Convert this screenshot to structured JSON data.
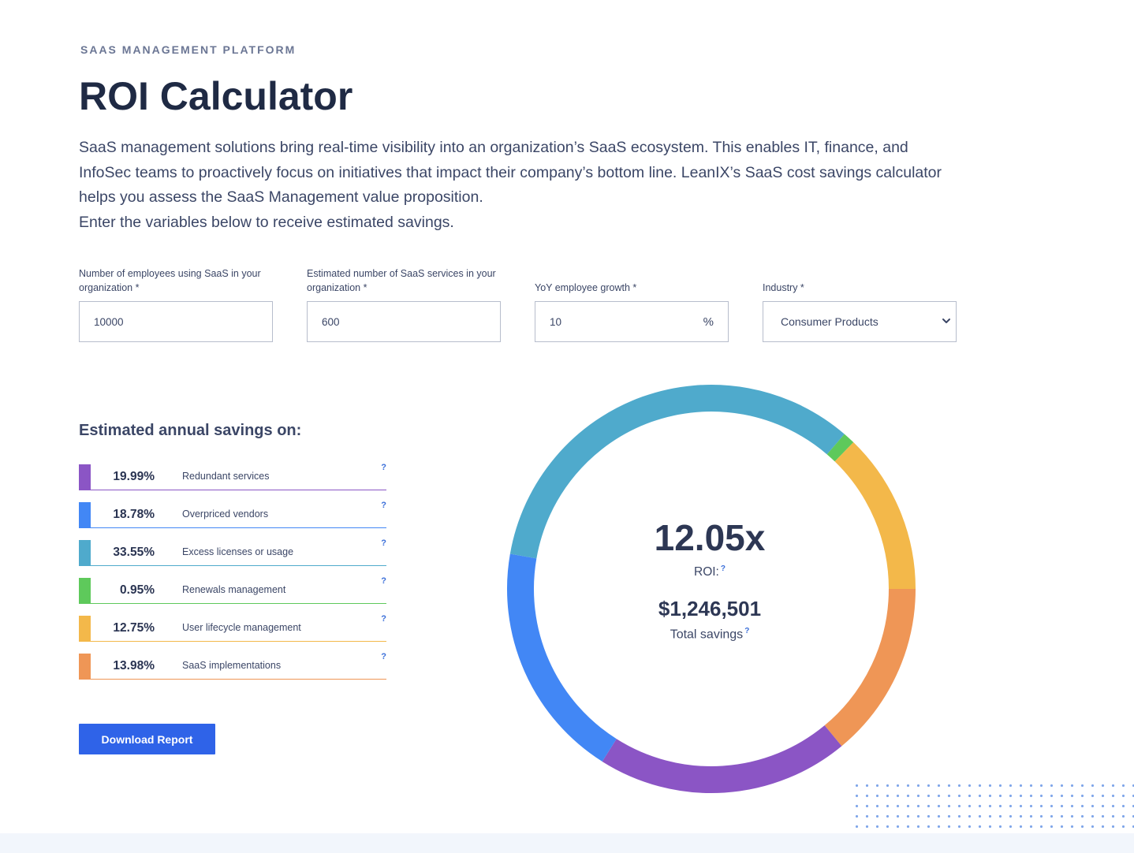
{
  "header": {
    "eyebrow": "SAAS MANAGEMENT PLATFORM",
    "title": "ROI Calculator",
    "intro": [
      "SaaS management solutions bring real-time visibility into an organization’s SaaS ecosystem. This enables IT, finance, and InfoSec teams to proactively focus on initiatives that impact their company’s bottom line. LeanIX’s SaaS cost savings calculator helps you assess the SaaS Management value proposition.",
      "Enter the variables below to receive estimated savings."
    ]
  },
  "form": {
    "employees": {
      "label": "Number of employees using SaaS in your organization  *",
      "value": "10000"
    },
    "services": {
      "label": "Estimated number of SaaS services in your organization  *",
      "value": "600"
    },
    "growth": {
      "label": "YoY employee growth  *",
      "value": "10",
      "unit": "%"
    },
    "industry": {
      "label": "Industry  *",
      "value": "Consumer Products",
      "icon": "chevron-down-icon"
    }
  },
  "savings": {
    "heading": "Estimated annual savings on:",
    "help_symbol": "?",
    "items": [
      {
        "pct": "19.99%",
        "label": "Redundant services",
        "color": "#8b55c5"
      },
      {
        "pct": "18.78%",
        "label": "Overpriced vendors",
        "color": "#4287f5"
      },
      {
        "pct": "33.55%",
        "label": "Excess licenses or usage",
        "color": "#4faacc"
      },
      {
        "pct": "0.95%",
        "label": "Renewals management",
        "color": "#5ec95b"
      },
      {
        "pct": "12.75%",
        "label": "User lifecycle management",
        "color": "#f3b84a"
      },
      {
        "pct": "13.98%",
        "label": "SaaS implementations",
        "color": "#ef9656"
      }
    ]
  },
  "actions": {
    "download_label": "Download Report"
  },
  "results": {
    "roi_value": "12.05x",
    "roi_label": "ROI:",
    "total_value": "$1,246,501",
    "total_label": "Total savings",
    "help_symbol": "?"
  },
  "chart_data": {
    "type": "pie",
    "style": "donut",
    "start_angle_deg": 0,
    "direction": "clockwise",
    "segments": [
      {
        "label": "SaaS implementations",
        "value": 13.98,
        "color": "#ef9656"
      },
      {
        "label": "Redundant services",
        "value": 19.99,
        "color": "#8b55c5"
      },
      {
        "label": "Overpriced vendors",
        "value": 18.78,
        "color": "#4287f5"
      },
      {
        "label": "Excess licenses or usage",
        "value": 33.55,
        "color": "#4faacc"
      },
      {
        "label": "Renewals management",
        "value": 0.95,
        "color": "#5ec95b"
      },
      {
        "label": "User lifecycle management",
        "value": 12.75,
        "color": "#f3b84a"
      }
    ]
  }
}
